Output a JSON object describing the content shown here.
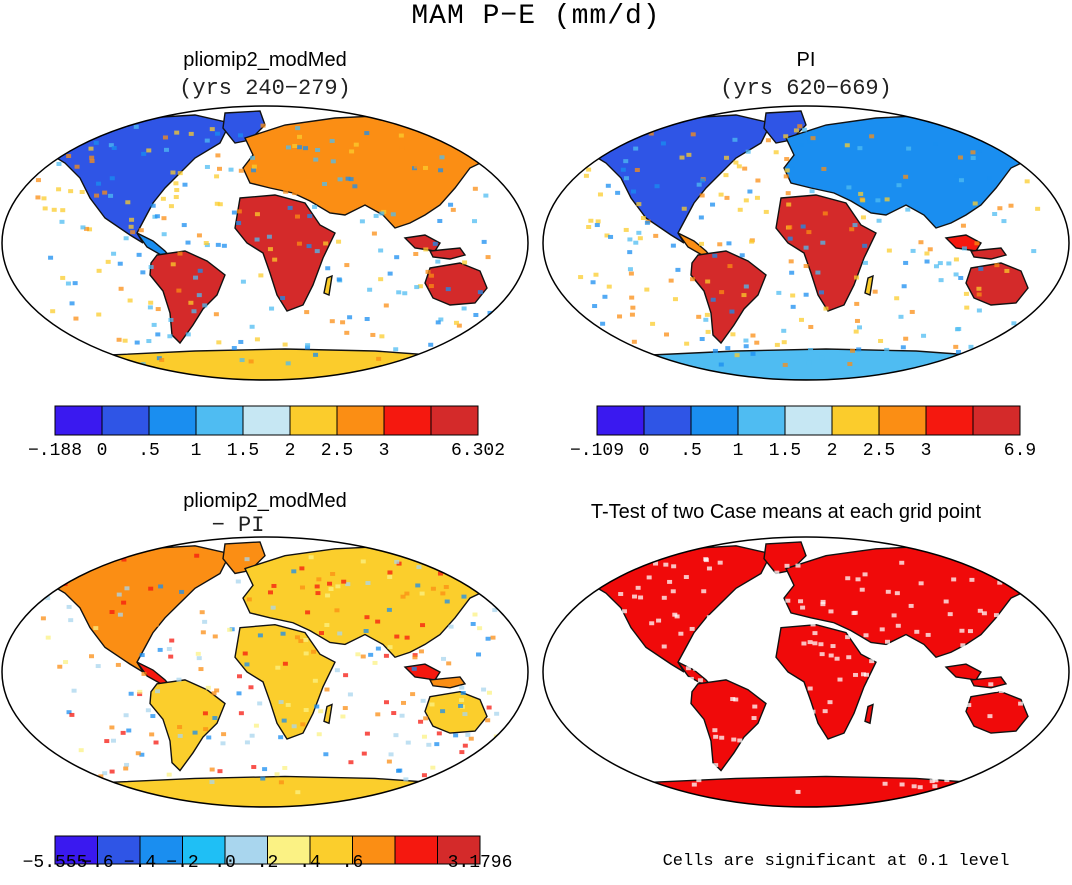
{
  "figure": {
    "title": "MAM P−E (mm/d)",
    "footnote": "Cells are significant at 0.1 level"
  },
  "panels": [
    {
      "id": "modmed",
      "title": "pliomip2_modMed",
      "subtitle": "(yrs 240−279)"
    },
    {
      "id": "pi",
      "title": "PI",
      "subtitle": "(yrs 620−669)"
    },
    {
      "id": "diff",
      "title": "pliomip2_modMed",
      "subtitle": "− PI"
    },
    {
      "id": "ttest",
      "title": "T-Test of two Case means at each grid point",
      "subtitle": ""
    }
  ],
  "chart_data": [
    {
      "type": "heatmap",
      "name": "pliomip2_modMed MAM P-E",
      "colorbar": {
        "colors": [
          "#3a19f0",
          "#2f55e6",
          "#1a8ef0",
          "#4fbcf2",
          "#c6e7f3",
          "#fbcc2c",
          "#fb8e14",
          "#f5180f",
          "#d42a2a"
        ],
        "tick_labels": [
          "−.188",
          "0",
          ".5",
          "1",
          "1.5",
          "2",
          "2.5",
          "3",
          "6.302"
        ]
      }
    },
    {
      "type": "heatmap",
      "name": "PI MAM P-E",
      "colorbar": {
        "colors": [
          "#3a19f0",
          "#2f55e6",
          "#1a8ef0",
          "#4fbcf2",
          "#c6e7f3",
          "#fbcc2c",
          "#fb8e14",
          "#f5180f",
          "#d42a2a"
        ],
        "tick_labels": [
          "−.109",
          "0",
          ".5",
          "1",
          "1.5",
          "2",
          "2.5",
          "3",
          "6.9"
        ]
      }
    },
    {
      "type": "heatmap",
      "name": "pliomip2_modMed minus PI",
      "colorbar": {
        "colors": [
          "#3a19f0",
          "#2f55e6",
          "#1a8ef0",
          "#1fbff5",
          "#a9d6ee",
          "#fbf284",
          "#fbce2c",
          "#fb8e14",
          "#f5180f",
          "#d42a2a"
        ],
        "tick_labels": [
          "−5.555",
          "−.6",
          "−.4",
          "−.2",
          ".0",
          ".2",
          ".4",
          ".6",
          "3.1796"
        ]
      }
    },
    {
      "type": "heatmap",
      "name": "T-Test significance",
      "colorbar": {
        "colors": [
          "#f00a0a"
        ],
        "tick_labels": []
      }
    }
  ]
}
